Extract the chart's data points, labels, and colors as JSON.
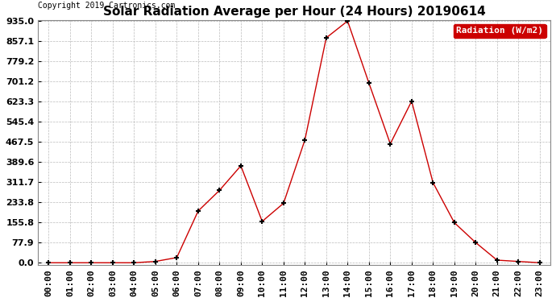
{
  "title": "Solar Radiation Average per Hour (24 Hours) 20190614",
  "copyright": "Copyright 2019 Cartronics.com",
  "legend_label": "Radiation (W/m2)",
  "hours": [
    "00:00",
    "01:00",
    "02:00",
    "03:00",
    "04:00",
    "05:00",
    "06:00",
    "07:00",
    "08:00",
    "09:00",
    "10:00",
    "11:00",
    "12:00",
    "13:00",
    "14:00",
    "15:00",
    "16:00",
    "17:00",
    "18:00",
    "19:00",
    "20:00",
    "21:00",
    "22:00",
    "23:00"
  ],
  "values": [
    0.0,
    0.0,
    0.0,
    0.0,
    0.0,
    5.0,
    20.0,
    200.0,
    280.0,
    375.0,
    160.0,
    230.0,
    475.0,
    870.0,
    935.0,
    695.0,
    460.0,
    625.0,
    310.0,
    155.0,
    78.0,
    10.0,
    5.0,
    0.0
  ],
  "yticks": [
    0.0,
    77.9,
    155.8,
    233.8,
    311.7,
    389.6,
    467.5,
    545.4,
    623.3,
    701.2,
    779.2,
    857.1,
    935.0
  ],
  "ytick_labels": [
    "0.0",
    "77.9",
    "155.8",
    "233.8",
    "311.7",
    "389.6",
    "467.5",
    "545.4",
    "623.3",
    "701.2",
    "779.2",
    "857.1",
    "935.0"
  ],
  "line_color": "#cc0000",
  "marker_color": "#000000",
  "bg_color": "#ffffff",
  "grid_color": "#bbbbbb",
  "legend_bg": "#cc0000",
  "legend_text_color": "#ffffff",
  "title_fontsize": 11,
  "copyright_fontsize": 7,
  "tick_fontsize": 8,
  "ymax": 935.0,
  "ymin": 0.0
}
